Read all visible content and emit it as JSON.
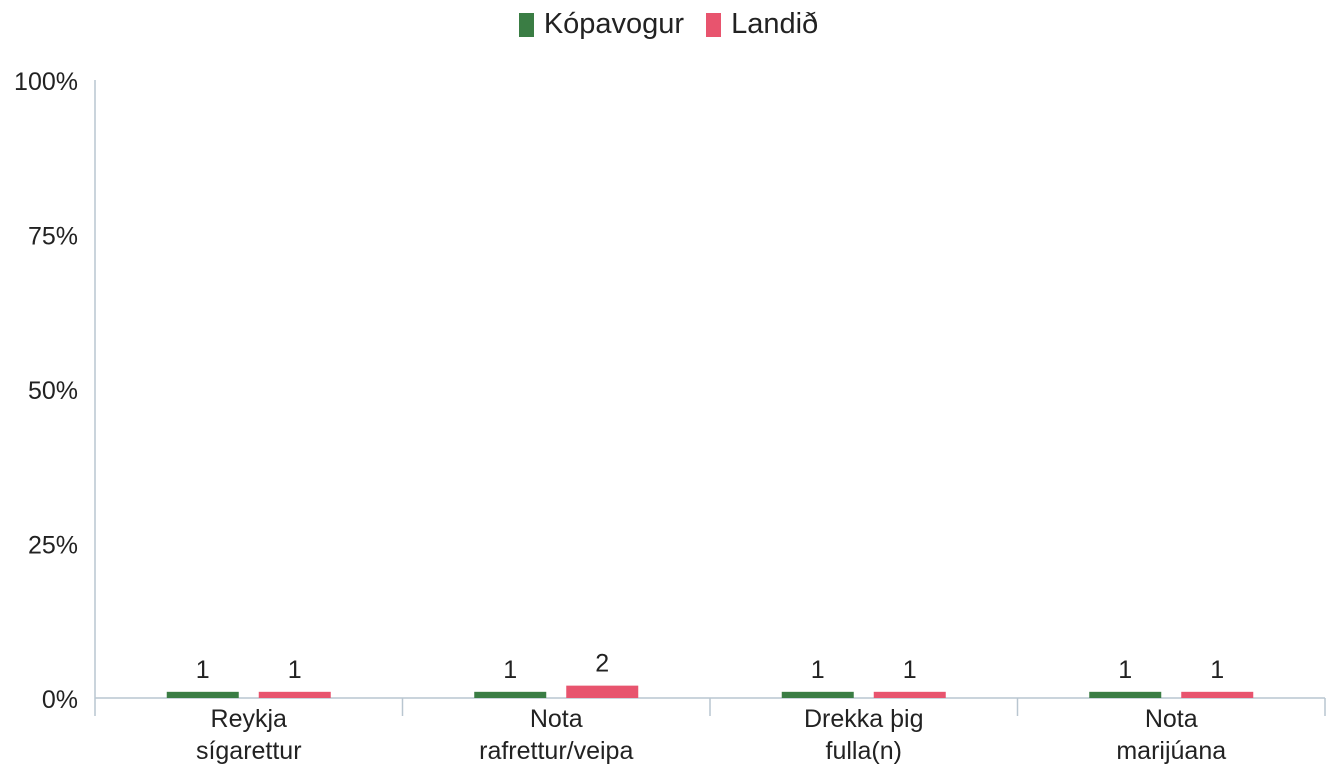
{
  "chart_data": {
    "type": "bar",
    "title": "",
    "xlabel": "",
    "ylabel": "",
    "ylim": [
      0,
      100
    ],
    "y_ticks": [
      "0%",
      "25%",
      "50%",
      "75%",
      "100%"
    ],
    "y_tick_values": [
      0,
      25,
      50,
      75,
      100
    ],
    "grid": false,
    "legend_position": "top-center",
    "categories": [
      [
        "Reykja",
        "sígarettur"
      ],
      [
        "Nota",
        "rafrettur/veipa"
      ],
      [
        "Drekka þig",
        "fulla(n)"
      ],
      [
        "Nota",
        "marijúana"
      ]
    ],
    "series": [
      {
        "name": "Kópavogur",
        "color": "#3a7d44",
        "values": [
          1,
          1,
          1,
          1
        ]
      },
      {
        "name": "Landið",
        "color": "#e8546e",
        "values": [
          1,
          2,
          1,
          1
        ]
      }
    ],
    "data_labels": true
  }
}
